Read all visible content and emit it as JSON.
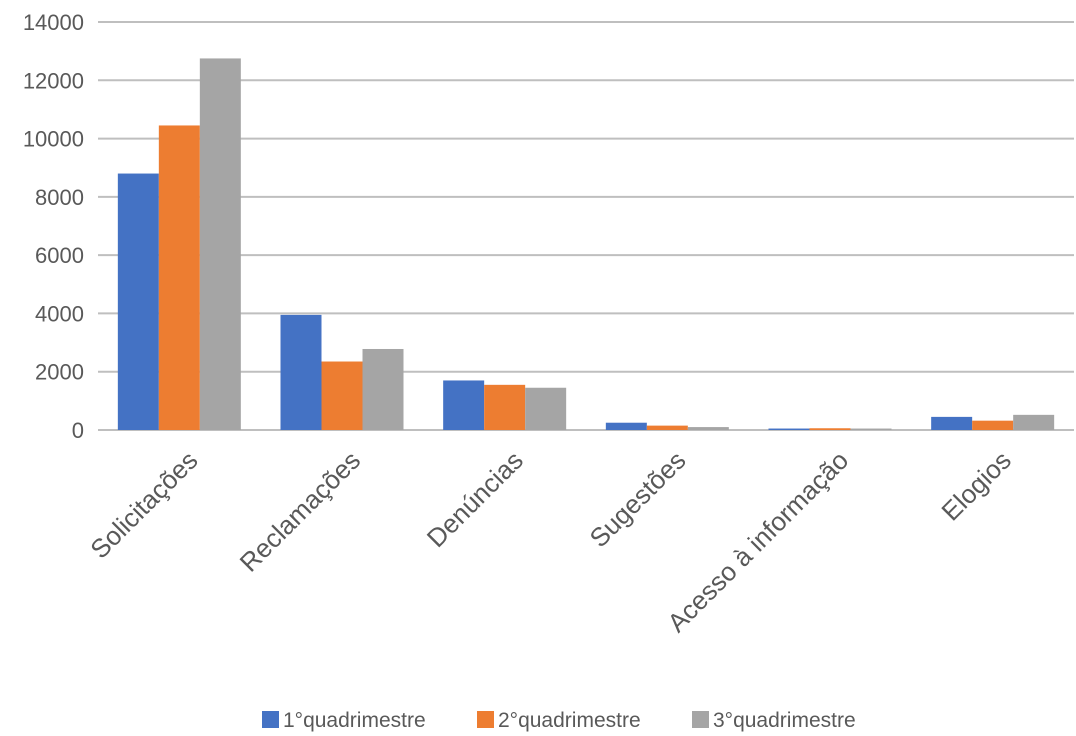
{
  "chart_data": {
    "type": "bar",
    "title": "",
    "xlabel": "",
    "ylabel": "",
    "ylim": [
      0,
      14000
    ],
    "yticks": [
      0,
      2000,
      4000,
      6000,
      8000,
      10000,
      12000,
      14000
    ],
    "grid": true,
    "legend_position": "bottom",
    "categories": [
      "Solicitações",
      "Reclamações",
      "Denúncias",
      "Sugestões",
      "Acesso à informação",
      "Elogios"
    ],
    "series": [
      {
        "name": "1°quadrimestre",
        "color": "#4472C4",
        "values": [
          8800,
          3950,
          1700,
          250,
          50,
          450
        ]
      },
      {
        "name": "2°quadrimestre",
        "color": "#ED7D31",
        "values": [
          10450,
          2350,
          1550,
          150,
          60,
          320
        ]
      },
      {
        "name": "3°quadrimestre",
        "color": "#A5A5A5",
        "values": [
          12750,
          2780,
          1450,
          100,
          50,
          520
        ]
      }
    ]
  }
}
